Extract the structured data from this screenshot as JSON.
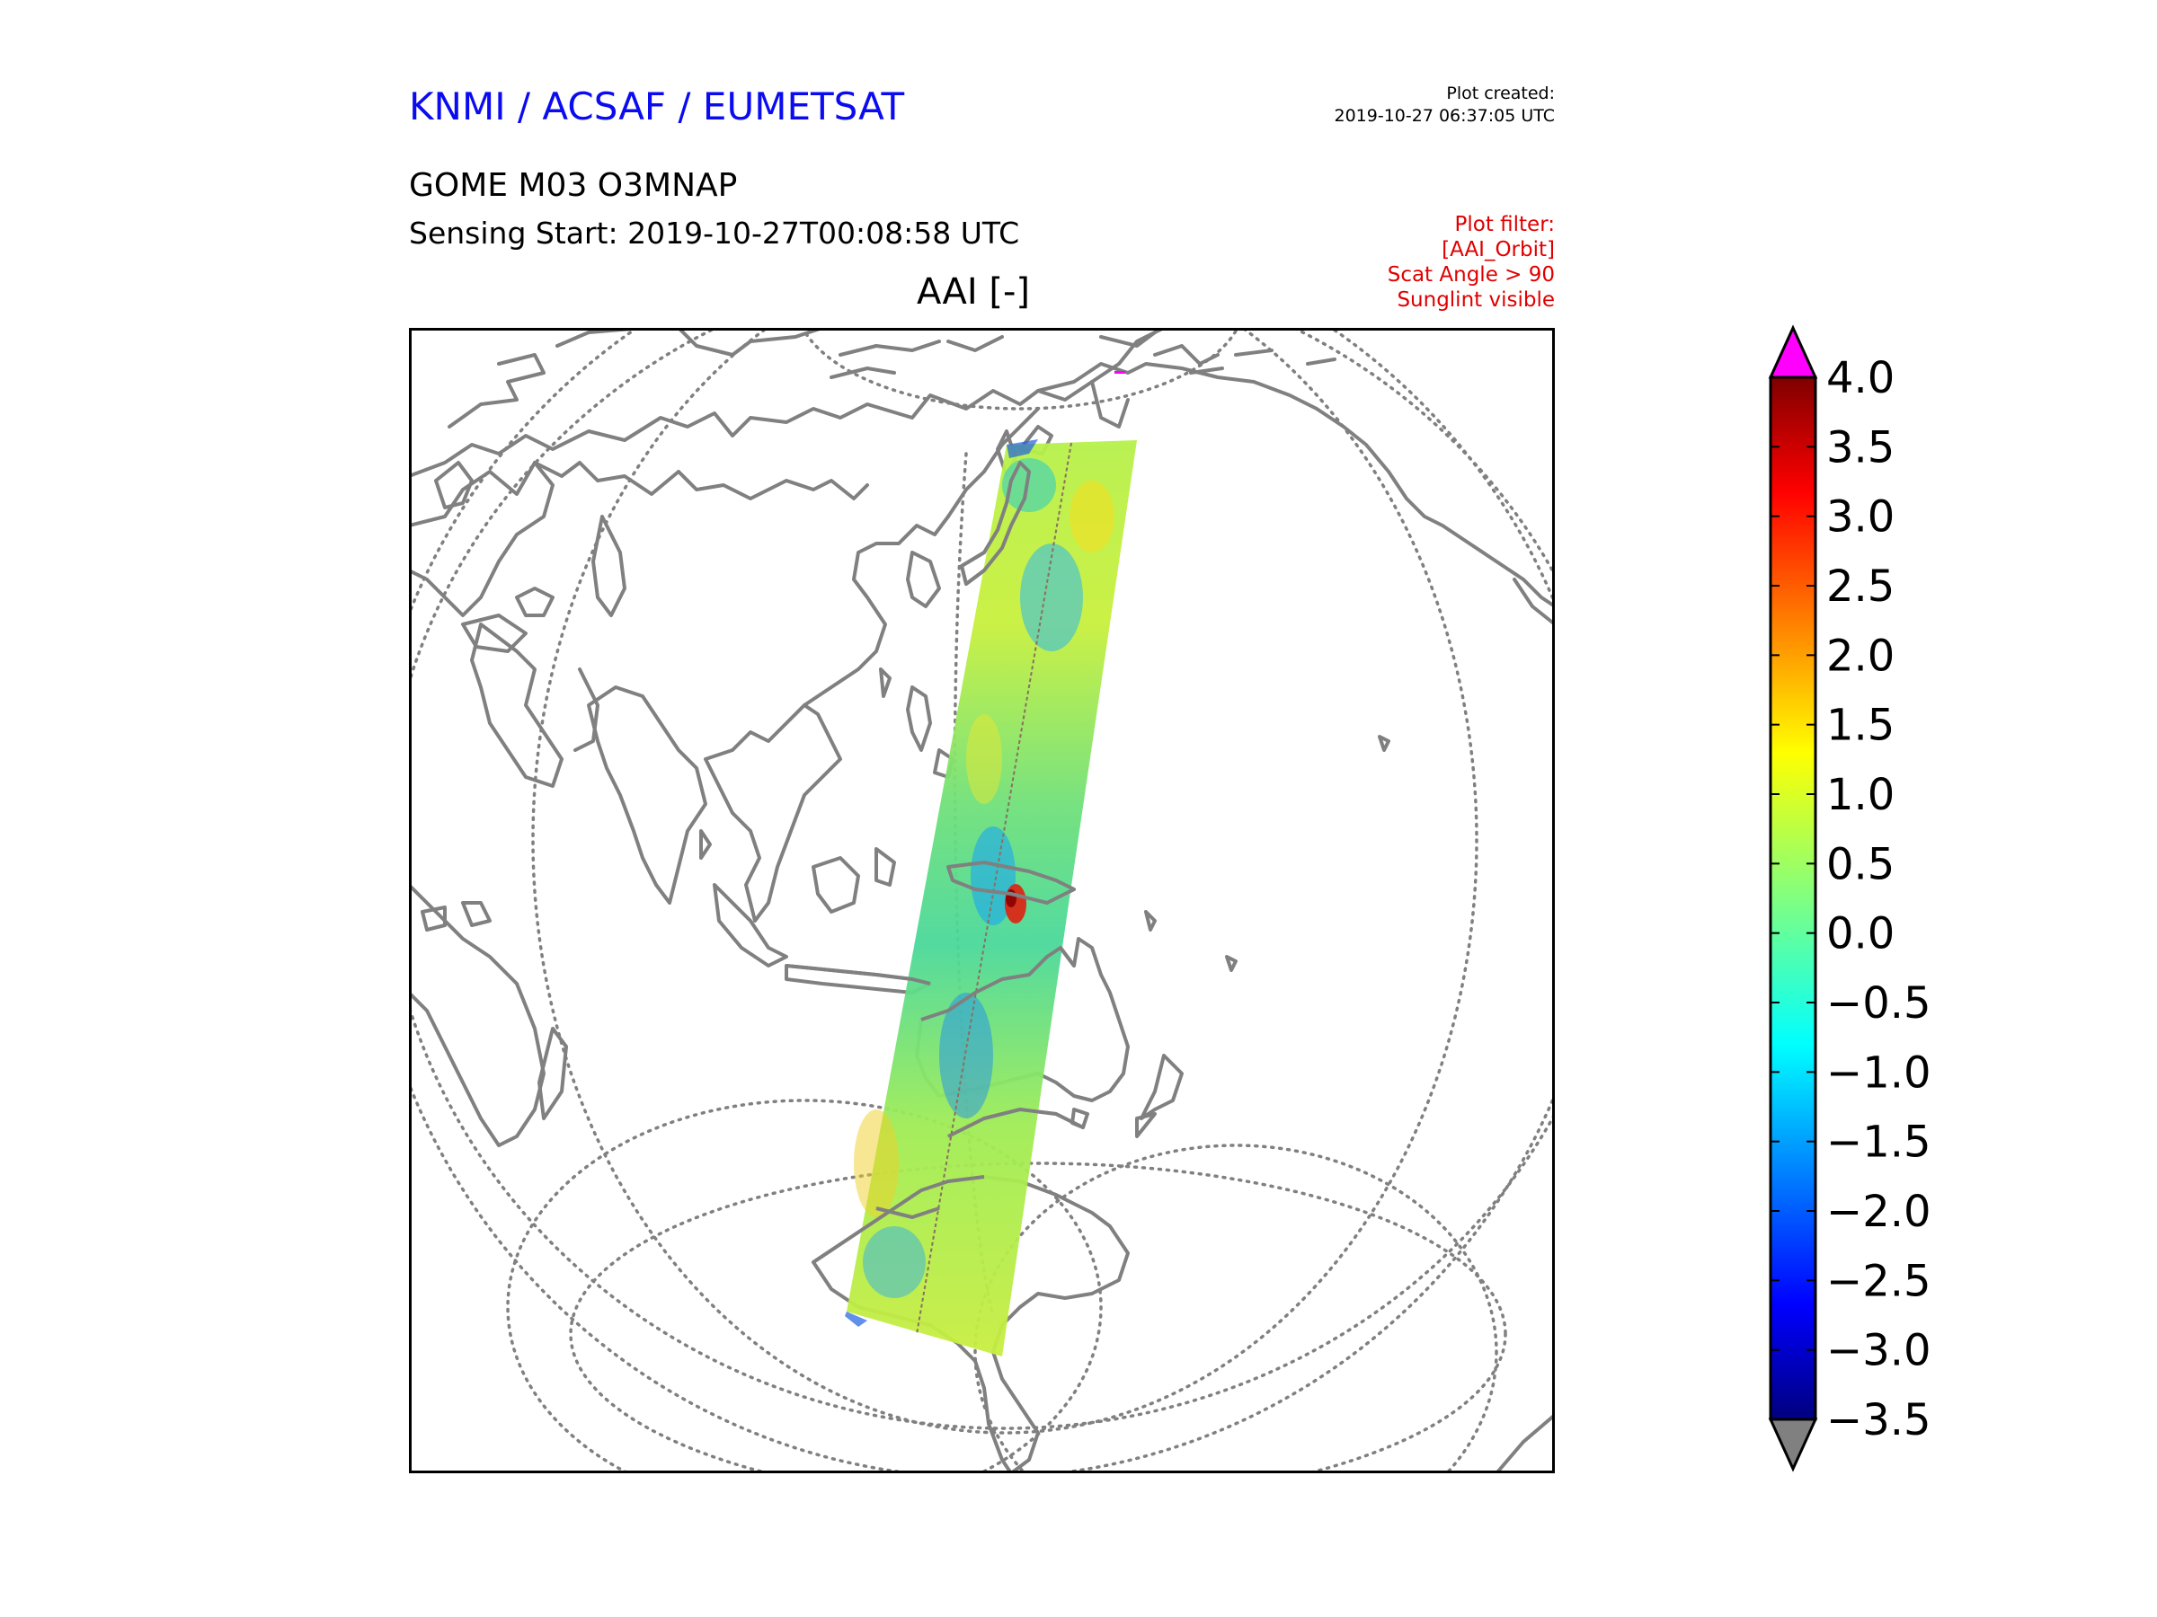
{
  "header": {
    "organization": "KNMI / ACSAF / EUMETSAT",
    "product": "GOME M03 O3MNAP",
    "sensing_start": "Sensing Start: 2019-10-27T00:08:58 UTC",
    "plot_created_label": "Plot created:",
    "plot_created_value": "2019-10-27 06:37:05 UTC",
    "filter_lines": [
      "Plot filter:",
      "[AAI_Orbit]",
      "Scat Angle > 90",
      "Sunglint visible"
    ]
  },
  "map": {
    "title": "AAI [-]",
    "projection": "orthographic",
    "coastline_color": "#808080",
    "grid_color": "#808080"
  },
  "chart_data": {
    "type": "heatmap",
    "title": "AAI [-]",
    "colorbar": {
      "vmin": -3.5,
      "vmax": 4.0,
      "ticks": [
        4.0,
        3.5,
        3.0,
        2.5,
        2.0,
        1.5,
        1.0,
        0.5,
        0.0,
        -0.5,
        -1.0,
        -1.5,
        -2.0,
        -2.5,
        -3.0,
        -3.5
      ],
      "tick_labels": [
        "4.0",
        "3.5",
        "3.0",
        "2.5",
        "2.0",
        "1.5",
        "1.0",
        "0.5",
        "0.0",
        "−0.5",
        "−1.0",
        "−1.5",
        "−2.0",
        "−2.5",
        "−3.0",
        "−3.5"
      ],
      "over_color": "#ff00ff",
      "under_color": "#808080",
      "colormap": "jet"
    }
  }
}
